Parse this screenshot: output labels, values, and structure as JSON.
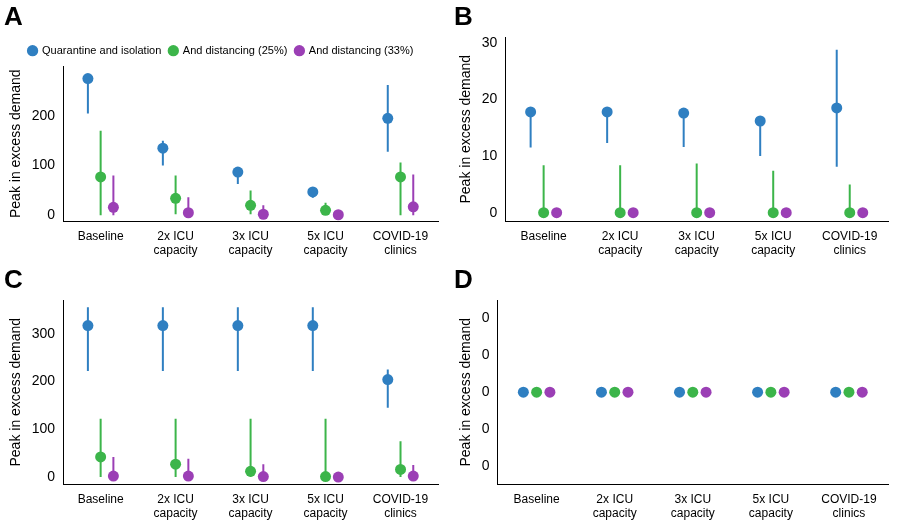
{
  "chart_data": [
    {
      "type": "scatter",
      "title": "A",
      "y_label": "Peak in excess demand",
      "categories": [
        "Baseline",
        "2x ICU capacity",
        "3x ICU capacity",
        "5x ICU capacity",
        "COVID-19 clinics"
      ],
      "series": [
        {
          "name": "Quarantine and isolation",
          "color": "#2f7fc1",
          "values": [
            275,
            135,
            87,
            47,
            195
          ],
          "lower": [
            205,
            100,
            63,
            35,
            128
          ],
          "upper": [
            275,
            150,
            95,
            52,
            262
          ]
        },
        {
          "name": "And distancing (25%)",
          "color": "#3cb54a",
          "values": [
            77,
            34,
            20,
            10,
            77
          ],
          "lower": [
            0,
            2,
            2,
            1,
            0
          ],
          "upper": [
            170,
            80,
            50,
            25,
            106
          ]
        },
        {
          "name": "And distancing (33%)",
          "color": "#9b3fb5",
          "values": [
            16,
            5,
            2,
            1,
            17
          ],
          "lower": [
            0,
            0,
            0,
            0,
            0
          ],
          "upper": [
            80,
            36,
            20,
            5,
            82
          ]
        }
      ],
      "ylim": [
        -12,
        300
      ],
      "yticks": [
        0,
        100,
        200
      ],
      "grid": false,
      "legend": "top"
    },
    {
      "type": "scatter",
      "title": "B",
      "y_label": "Peak in excess demand",
      "categories": [
        "Baseline",
        "2x ICU capacity",
        "3x ICU capacity",
        "5x ICU capacity",
        "COVID-19 clinics"
      ],
      "series": [
        {
          "name": "Quarantine and isolation",
          "color": "#2f7fc1",
          "values": [
            17.8,
            17.8,
            17.6,
            16.2,
            18.5
          ],
          "lower": [
            11.5,
            12.3,
            11.6,
            10,
            8.1
          ],
          "upper": [
            17.8,
            17.8,
            17.6,
            16.2,
            28.8
          ]
        },
        {
          "name": "And distancing (25%)",
          "color": "#3cb54a",
          "values": [
            0,
            0,
            0,
            0,
            0
          ],
          "lower": [
            0,
            0,
            0,
            0,
            0
          ],
          "upper": [
            8.4,
            8.4,
            8.7,
            7.4,
            5
          ]
        },
        {
          "name": "And distancing (33%)",
          "color": "#9b3fb5",
          "values": [
            0,
            0,
            0,
            0,
            0
          ],
          "lower": [
            0,
            0,
            0,
            0,
            0
          ],
          "upper": [
            0,
            0,
            0,
            0,
            0
          ]
        }
      ],
      "ylim": [
        -1.5,
        31
      ],
      "yticks": [
        0,
        10,
        20,
        30
      ],
      "grid": false
    },
    {
      "type": "scatter",
      "title": "C",
      "y_label": "Peak in excess demand",
      "categories": [
        "Baseline",
        "2x ICU capacity",
        "3x ICU capacity",
        "5x ICU capacity",
        "COVID-19 clinics"
      ],
      "series": [
        {
          "name": "Quarantine and isolation",
          "color": "#2f7fc1",
          "values": [
            317,
            317,
            317,
            317,
            204
          ],
          "lower": [
            222,
            222,
            222,
            222,
            145
          ],
          "upper": [
            355,
            355,
            355,
            355,
            225
          ]
        },
        {
          "name": "And distancing (25%)",
          "color": "#3cb54a",
          "values": [
            42,
            27,
            12,
            1,
            16
          ],
          "lower": [
            0,
            0,
            0,
            0,
            0
          ],
          "upper": [
            122,
            122,
            122,
            122,
            75
          ]
        },
        {
          "name": "And distancing (33%)",
          "color": "#9b3fb5",
          "values": [
            2,
            2,
            1,
            0,
            2
          ],
          "lower": [
            0,
            0,
            0,
            0,
            0
          ],
          "upper": [
            42,
            38,
            27,
            5,
            25
          ]
        }
      ],
      "ylim": [
        -15,
        370
      ],
      "yticks": [
        0,
        100,
        200,
        300
      ],
      "grid": false
    },
    {
      "type": "scatter",
      "title": "D",
      "y_label": "Peak in excess demand",
      "categories": [
        "Baseline",
        "2x ICU capacity",
        "3x ICU capacity",
        "5x ICU capacity",
        "COVID-19 clinics"
      ],
      "series": [
        {
          "name": "Quarantine and isolation",
          "color": "#2f7fc1",
          "values": [
            0,
            0,
            0,
            0,
            0
          ],
          "lower": [
            0,
            0,
            0,
            0,
            0
          ],
          "upper": [
            0,
            0,
            0,
            0,
            0
          ]
        },
        {
          "name": "And distancing (25%)",
          "color": "#3cb54a",
          "values": [
            0,
            0,
            0,
            0,
            0
          ],
          "lower": [
            0,
            0,
            0,
            0,
            0
          ],
          "upper": [
            0,
            0,
            0,
            0,
            0
          ]
        },
        {
          "name": "And distancing (33%)",
          "color": "#9b3fb5",
          "values": [
            0,
            0,
            0,
            0,
            0
          ],
          "lower": [
            0,
            0,
            0,
            0,
            0
          ],
          "upper": [
            0,
            0,
            0,
            0,
            0
          ]
        }
      ],
      "ylim": [
        -0.05,
        0.05
      ],
      "yticks": [
        {
          "value": -0.04,
          "label": "0"
        },
        {
          "value": -0.02,
          "label": "0"
        },
        {
          "value": 0,
          "label": "0"
        },
        {
          "value": 0.02,
          "label": "0"
        },
        {
          "value": 0.04,
          "label": "0"
        }
      ],
      "grid": false
    }
  ]
}
